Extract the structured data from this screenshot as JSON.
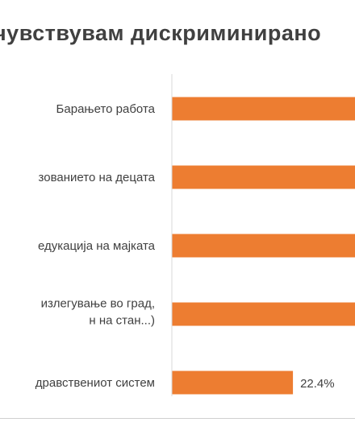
{
  "chart_data": {
    "type": "bar",
    "orientation": "horizontal",
    "title": "чувствувам дискриминирано",
    "categories": [
      [
        "Барањето работа"
      ],
      [
        "зованието на децата"
      ],
      [
        "едукација на мајката"
      ],
      [
        "излегување во град,",
        "н на стан...)"
      ],
      [
        "дравствениот систем"
      ]
    ],
    "values": [
      null,
      null,
      null,
      null,
      22.4
    ],
    "data_labels": [
      "",
      "",
      "",
      "",
      "22.4%"
    ],
    "bar_color": "#ED7D31",
    "grid": false
  }
}
